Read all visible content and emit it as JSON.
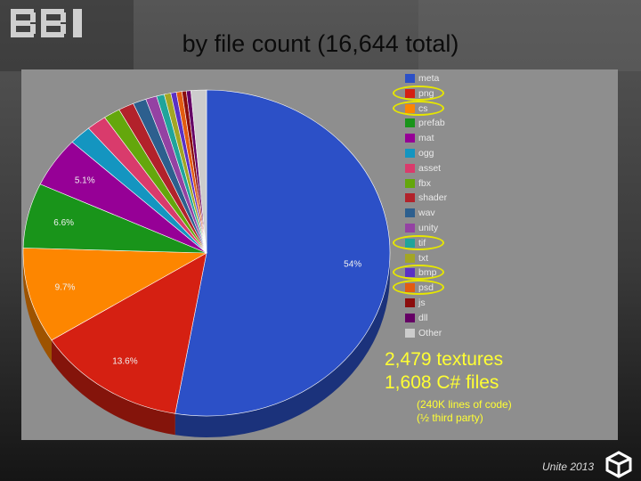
{
  "slide": {
    "title": "by file count (16,644 total)",
    "logo_text": "BBI",
    "footer": "Unite 2013",
    "icons": {
      "logo": "bbi-logo",
      "unity": "unity-logo-icon"
    },
    "callouts": {
      "textures": "2,479 textures",
      "csharp": "1,608 C# files",
      "lines": "(240K lines of code)",
      "third_party": "(½ third party)"
    },
    "highlight_color": "#e6e600"
  },
  "chart_data": {
    "type": "pie",
    "total": 16644,
    "legend_position": "right",
    "categories": [
      "meta",
      "png",
      "cs",
      "prefab",
      "mat",
      "ogg",
      "asset",
      "fbx",
      "shader",
      "wav",
      "unity",
      "tif",
      "txt",
      "bmp",
      "psd",
      "js",
      "dll",
      "Other"
    ],
    "values": [
      54,
      13.6,
      9.7,
      6.6,
      5.1,
      2.0,
      1.8,
      1.5,
      1.4,
      1.2,
      1.0,
      0.7,
      0.6,
      0.5,
      0.5,
      0.4,
      0.4,
      1.4
    ],
    "data_labels": [
      "54%",
      "13.6%",
      "9.7%",
      "6.6%",
      "5.1%",
      "",
      "",
      "",
      "",
      "",
      "",
      "",
      "",
      "",
      "",
      "",
      "",
      ""
    ],
    "colors": [
      "#2c50c7",
      "#d52012",
      "#fd8600",
      "#19941a",
      "#960096",
      "#1495c0",
      "#d93b6c",
      "#64a70c",
      "#b2222b",
      "#2d5f8e",
      "#9442a3",
      "#20a49b",
      "#a3a624",
      "#5a31c5",
      "#e35c11",
      "#8b0d0d",
      "#650065",
      "#cccccc"
    ],
    "highlighted": [
      "png",
      "cs",
      "tif",
      "bmp",
      "psd"
    ]
  }
}
